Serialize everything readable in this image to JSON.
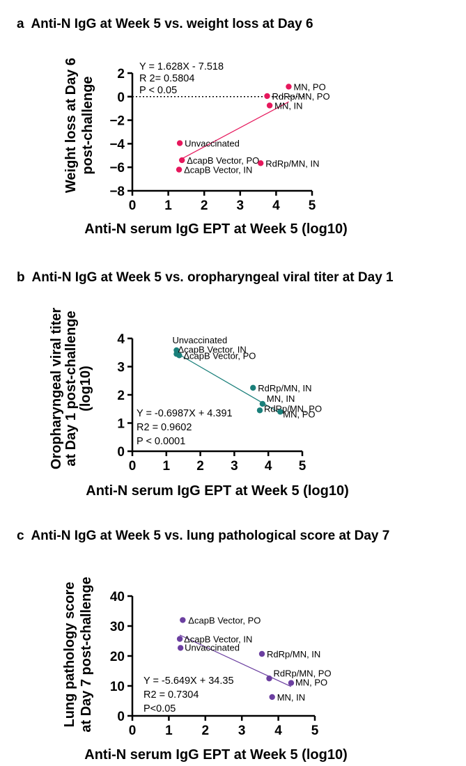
{
  "panels": [
    {
      "letter": "a",
      "title": "Anti-N IgG at Week 5 vs. weight loss at Day 6",
      "chart_data": {
        "type": "scatter",
        "title": "Anti-N IgG at Week 5 vs. weight loss at Day 6",
        "xlabel": "Anti-N serum IgG EPT at Week 5 (log10)",
        "ylabel": [
          "Weight loss at Day 6",
          "post-challenge"
        ],
        "xlim": [
          0,
          5
        ],
        "ylim": [
          -8,
          2
        ],
        "xticks": [
          0,
          1,
          2,
          3,
          4,
          5
        ],
        "yticks": [
          -8,
          -6,
          -4,
          -2,
          0,
          2
        ],
        "ytick_labels": [
          "−8",
          "−6",
          "−4",
          "−2",
          "0",
          "2"
        ],
        "color": "#e6175c",
        "reference_line_y": 0,
        "fit": {
          "slope": 1.628,
          "intercept": -7.518,
          "x_range": [
            1.3,
            4.35
          ]
        },
        "stats": [
          "Y = 1.628X - 7.518",
          "R 2= 0.5804",
          "P < 0.05"
        ],
        "points": [
          {
            "label": "MN, PO",
            "x": 4.35,
            "y": 0.85
          },
          {
            "label": "RdRp/MN, PO",
            "x": 3.75,
            "y": 0.05
          },
          {
            "label": "MN, IN",
            "x": 3.82,
            "y": -0.75
          },
          {
            "label": "Unvaccinated",
            "x": 1.32,
            "y": -3.95
          },
          {
            "label": "ΔcapB Vector, PO",
            "x": 1.38,
            "y": -5.4
          },
          {
            "label": "ΔcapB Vector, IN",
            "x": 1.3,
            "y": -6.2
          },
          {
            "label": "RdRp/MN, IN",
            "x": 3.57,
            "y": -5.65
          }
        ]
      }
    },
    {
      "letter": "b",
      "title": "Anti-N IgG at Week 5 vs. oropharyngeal viral titer at Day 1",
      "chart_data": {
        "type": "scatter",
        "title": "Anti-N IgG at Week 5 vs. oropharyngeal viral titer at Day 1",
        "xlabel": "Anti-N serum IgG EPT at Week 5 (log10)",
        "ylabel": [
          "Oropharyngeal viral titer",
          "at Day 1 post-challenge",
          "(log10)"
        ],
        "xlim": [
          0,
          5
        ],
        "ylim": [
          0,
          4
        ],
        "xticks": [
          0,
          1,
          2,
          3,
          4,
          5
        ],
        "yticks": [
          0,
          1,
          2,
          3,
          4
        ],
        "ytick_labels": [
          "0",
          "1",
          "2",
          "3",
          "4"
        ],
        "color": "#1a7f7a",
        "fit": {
          "slope": -0.6987,
          "intercept": 4.391,
          "x_range": [
            1.3,
            4.35
          ]
        },
        "stats": [
          "Y = -0.6987X + 4.391",
          "R2 = 0.9602",
          "P < 0.0001"
        ],
        "points": [
          {
            "label": "Unvaccinated",
            "x": 1.3,
            "y": 3.58
          },
          {
            "label": "ΔcapB Vector, IN",
            "x": 1.3,
            "y": 3.45
          },
          {
            "label": "ΔcapB Vector, PO",
            "x": 1.38,
            "y": 3.4
          },
          {
            "label": "RdRp/MN, IN",
            "x": 3.55,
            "y": 2.25
          },
          {
            "label": "MN, IN",
            "x": 3.83,
            "y": 1.68
          },
          {
            "label": "RdRp/MN, PO",
            "x": 3.75,
            "y": 1.45
          },
          {
            "label": "MN, PO",
            "x": 4.35,
            "y": 1.4
          }
        ]
      }
    },
    {
      "letter": "c",
      "title": "Anti-N IgG at Week 5 vs. lung pathological score at Day 7",
      "chart_data": {
        "type": "scatter",
        "title": "Anti-N IgG at Week 5 vs. lung pathological score at Day 7",
        "xlabel": "Anti-N serum IgG EPT at Week 5 (log10)",
        "ylabel": [
          "Lung pathology score",
          "at Day 7 post-challenge"
        ],
        "xlim": [
          0,
          5
        ],
        "ylim": [
          0,
          40
        ],
        "xticks": [
          0,
          1,
          2,
          3,
          4,
          5
        ],
        "yticks": [
          0,
          10,
          20,
          30,
          40
        ],
        "ytick_labels": [
          "0",
          "10",
          "20",
          "30",
          "40"
        ],
        "color": "#6b3fa0",
        "fit": {
          "slope": -5.649,
          "intercept": 34.35,
          "x_range": [
            1.3,
            4.35
          ]
        },
        "stats": [
          "Y = -5.649X + 34.35",
          "R2 = 0.7304",
          "P<0.05"
        ],
        "points": [
          {
            "label": "ΔcapB Vector, PO",
            "x": 1.38,
            "y": 32
          },
          {
            "label": "ΔcapB Vector, IN",
            "x": 1.3,
            "y": 25.7
          },
          {
            "label": "Unvaccinated",
            "x": 1.32,
            "y": 22.7
          },
          {
            "label": "RdRp/MN, IN",
            "x": 3.55,
            "y": 20.7
          },
          {
            "label": "RdRp/MN, PO",
            "x": 3.75,
            "y": 12.5
          },
          {
            "label": "MN, PO",
            "x": 4.35,
            "y": 11
          },
          {
            "label": "MN, IN",
            "x": 3.83,
            "y": 6.3
          }
        ]
      }
    }
  ]
}
